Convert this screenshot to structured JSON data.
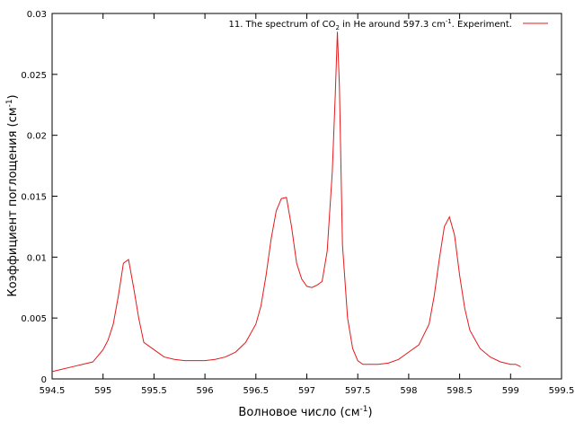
{
  "chart_data": {
    "type": "line",
    "xlabel": {
      "text": "Волновое число (см",
      "sup": "-1",
      "tail": ")"
    },
    "ylabel": {
      "text": "Коэффициент поглощения (см",
      "sup": "-1",
      "tail": ")"
    },
    "xlim": [
      594.5,
      599.5
    ],
    "ylim": [
      0,
      0.03
    ],
    "x_ticks": [
      "594.5",
      "595",
      "595.5",
      "596",
      "596.5",
      "597",
      "597.5",
      "598",
      "598.5",
      "599",
      "599.5"
    ],
    "y_ticks": [
      "0",
      "0.005",
      "0.01",
      "0.015",
      "0.02",
      "0.025",
      "0.03"
    ],
    "grid": false,
    "legend_position": "top-right",
    "series": [
      {
        "legend": {
          "part1": "11. The spectrum of CO",
          "sub": "2",
          "part2": " in He around 597.3 cm",
          "sup": "-1",
          "part3": ". Experiment."
        },
        "color": "#e41a1c",
        "x": [
          594.5,
          594.6,
          594.7,
          594.8,
          594.9,
          595.0,
          595.05,
          595.1,
          595.15,
          595.2,
          595.25,
          595.3,
          595.35,
          595.4,
          595.5,
          595.6,
          595.7,
          595.8,
          595.9,
          596.0,
          596.1,
          596.2,
          596.3,
          596.4,
          596.5,
          596.55,
          596.6,
          596.65,
          596.7,
          596.75,
          596.8,
          596.85,
          596.9,
          596.95,
          597.0,
          597.05,
          597.1,
          597.15,
          597.2,
          597.25,
          597.28,
          597.3,
          597.32,
          597.35,
          597.4,
          597.45,
          597.5,
          597.55,
          597.6,
          597.7,
          597.8,
          597.9,
          598.0,
          598.1,
          598.2,
          598.25,
          598.3,
          598.35,
          598.4,
          598.45,
          598.5,
          598.55,
          598.6,
          598.7,
          598.8,
          598.9,
          599.0,
          599.05,
          599.1
        ],
        "y": [
          0.0006,
          0.0008,
          0.001,
          0.0012,
          0.0014,
          0.0024,
          0.0032,
          0.0045,
          0.0068,
          0.0095,
          0.0098,
          0.0075,
          0.005,
          0.003,
          0.0024,
          0.0018,
          0.0016,
          0.0015,
          0.0015,
          0.0015,
          0.0016,
          0.0018,
          0.0022,
          0.003,
          0.0045,
          0.006,
          0.0085,
          0.0115,
          0.0138,
          0.0148,
          0.0149,
          0.0125,
          0.0095,
          0.0082,
          0.0076,
          0.0075,
          0.0077,
          0.008,
          0.0105,
          0.017,
          0.0235,
          0.0285,
          0.024,
          0.011,
          0.005,
          0.0025,
          0.0015,
          0.0012,
          0.0012,
          0.0012,
          0.0013,
          0.0016,
          0.0022,
          0.0028,
          0.0045,
          0.0068,
          0.0098,
          0.0125,
          0.0133,
          0.0118,
          0.0085,
          0.0058,
          0.004,
          0.0025,
          0.0018,
          0.0014,
          0.0012,
          0.0012,
          0.001
        ]
      }
    ]
  }
}
